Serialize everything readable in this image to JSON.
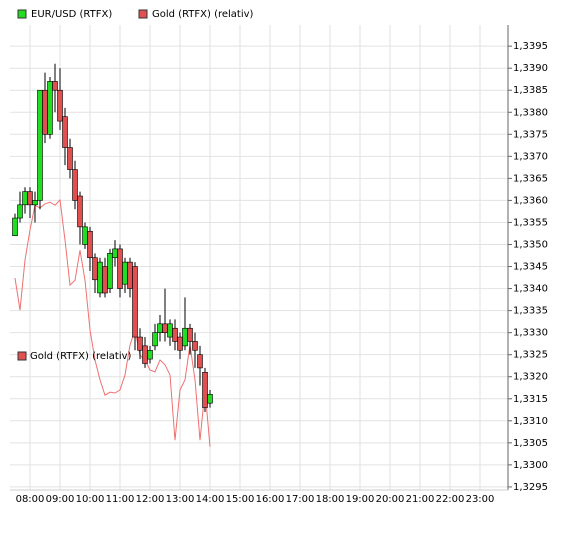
{
  "chart_data": {
    "type": "candlestick",
    "legend": "top",
    "grid": true,
    "x": [
      "07:30",
      "07:40",
      "07:50",
      "08:00",
      "08:10",
      "08:20",
      "08:30",
      "08:40",
      "08:50",
      "09:00",
      "09:10",
      "09:20",
      "09:30",
      "09:40",
      "09:50",
      "10:00",
      "10:10",
      "10:20",
      "10:30",
      "10:40",
      "10:50",
      "11:00",
      "11:10",
      "11:20",
      "11:30",
      "11:40",
      "11:50",
      "12:00",
      "12:10",
      "12:20",
      "12:30",
      "12:40",
      "12:50",
      "13:00",
      "13:10",
      "13:20",
      "13:30",
      "13:40",
      "13:50",
      "14:00"
    ],
    "candles": {
      "name": "EUR/USD (RTFX)",
      "up_color": "#22dd22",
      "down_color": "#e05050",
      "open": [
        1.3352,
        1.3356,
        1.3359,
        1.3362,
        1.3359,
        1.336,
        1.3385,
        1.3375,
        1.3387,
        1.3385,
        1.3379,
        1.3372,
        1.3367,
        1.3361,
        1.335,
        1.3353,
        1.3347,
        1.3339,
        1.3345,
        1.334,
        1.3347,
        1.3349,
        1.3341,
        1.3346,
        1.3345,
        1.3329,
        1.3327,
        1.3324,
        1.3327,
        1.333,
        1.3332,
        1.3329,
        1.3331,
        1.3329,
        1.3327,
        1.3331,
        1.3328,
        1.3325,
        1.3321,
        1.3314
      ],
      "high": [
        1.3357,
        1.3362,
        1.3363,
        1.3363,
        1.3362,
        1.3385,
        1.3389,
        1.3388,
        1.3391,
        1.339,
        1.3381,
        1.3374,
        1.3369,
        1.3362,
        1.3355,
        1.3354,
        1.3348,
        1.3347,
        1.3347,
        1.3349,
        1.3351,
        1.335,
        1.3347,
        1.3347,
        1.3346,
        1.3331,
        1.3329,
        1.3327,
        1.3332,
        1.3334,
        1.334,
        1.3333,
        1.3333,
        1.333,
        1.3338,
        1.3332,
        1.333,
        1.3327,
        1.3322,
        1.3317
      ],
      "low": [
        1.3352,
        1.3355,
        1.3357,
        1.3356,
        1.3355,
        1.3358,
        1.3373,
        1.3374,
        1.338,
        1.3376,
        1.3368,
        1.3365,
        1.3358,
        1.335,
        1.3349,
        1.3344,
        1.3339,
        1.3338,
        1.3338,
        1.3339,
        1.3345,
        1.3338,
        1.3339,
        1.3338,
        1.3326,
        1.3324,
        1.3322,
        1.3323,
        1.3326,
        1.3328,
        1.3328,
        1.3327,
        1.3326,
        1.3324,
        1.3326,
        1.3325,
        1.3322,
        1.3318,
        1.3312,
        1.3313
      ],
      "close": [
        1.3356,
        1.3359,
        1.3362,
        1.3359,
        1.336,
        1.3385,
        1.3375,
        1.3387,
        1.3385,
        1.3378,
        1.3372,
        1.3367,
        1.336,
        1.3354,
        1.3354,
        1.3347,
        1.3342,
        1.3346,
        1.3339,
        1.3348,
        1.3349,
        1.334,
        1.3346,
        1.334,
        1.3329,
        1.3326,
        1.3323,
        1.3326,
        1.333,
        1.3332,
        1.333,
        1.3332,
        1.3328,
        1.3326,
        1.3331,
        1.3328,
        1.3326,
        1.3322,
        1.3313,
        1.3316
      ]
    },
    "line": {
      "name": "Gold (RTFX) (relativ)",
      "color": "#f07070",
      "values": [
        1.33424,
        1.33351,
        1.33465,
        1.33533,
        1.33589,
        1.33583,
        1.33592,
        1.33596,
        1.33589,
        1.33601,
        1.3351,
        1.33408,
        1.33419,
        1.33487,
        1.33419,
        1.33306,
        1.33238,
        1.33193,
        1.33158,
        1.33165,
        1.33163,
        1.3317,
        1.33204,
        1.33272,
        1.33306,
        1.33249,
        1.33238,
        1.33215,
        1.33211,
        1.33238,
        1.33227,
        1.33204,
        1.33056,
        1.3317,
        1.33193,
        1.33272,
        1.33193,
        1.33056,
        1.3317,
        1.33041
      ]
    },
    "ylim": [
      1.32943,
      1.33998
    ],
    "yticks": [
      {
        "value": 1.3295,
        "label": "1,3295"
      },
      {
        "value": 1.33,
        "label": "1,3300"
      },
      {
        "value": 1.3305,
        "label": "1,3305"
      },
      {
        "value": 1.331,
        "label": "1,3310"
      },
      {
        "value": 1.3315,
        "label": "1,3315"
      },
      {
        "value": 1.332,
        "label": "1,3320"
      },
      {
        "value": 1.3325,
        "label": "1,3325"
      },
      {
        "value": 1.333,
        "label": "1,3330"
      },
      {
        "value": 1.3335,
        "label": "1,3335"
      },
      {
        "value": 1.334,
        "label": "1,3340"
      },
      {
        "value": 1.3345,
        "label": "1,3345"
      },
      {
        "value": 1.335,
        "label": "1,3350"
      },
      {
        "value": 1.3355,
        "label": "1,3355"
      },
      {
        "value": 1.336,
        "label": "1,3360"
      },
      {
        "value": 1.3365,
        "label": "1,3365"
      },
      {
        "value": 1.337,
        "label": "1,3370"
      },
      {
        "value": 1.3375,
        "label": "1,3375"
      },
      {
        "value": 1.338,
        "label": "1,3380"
      },
      {
        "value": 1.3385,
        "label": "1,3385"
      },
      {
        "value": 1.339,
        "label": "1,3390"
      },
      {
        "value": 1.3395,
        "label": "1,3395"
      }
    ],
    "xticks": [
      "08:00",
      "09:00",
      "10:00",
      "11:00",
      "12:00",
      "13:00",
      "14:00",
      "15:00",
      "16:00",
      "17:00",
      "18:00",
      "19:00",
      "20:00",
      "21:00",
      "22:00",
      "23:00"
    ]
  }
}
